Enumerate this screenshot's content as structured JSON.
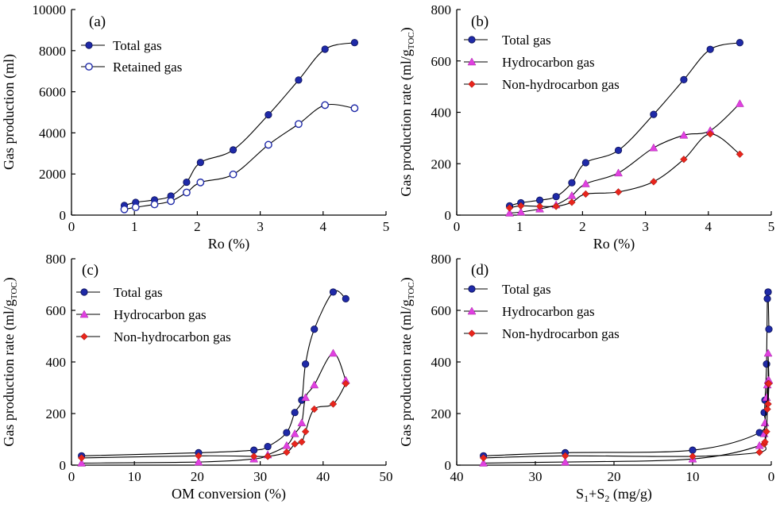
{
  "colors": {
    "total": "#1f2aa8",
    "hydro": "#e040e0",
    "nonhydro": "#e8251c",
    "line": "#000000"
  },
  "chart_data": [
    {
      "type": "line",
      "panel": "(a)",
      "xlabel": "Ro (%)",
      "ylabel": "Gas production (ml)",
      "xlim": [
        0,
        5
      ],
      "ylim": [
        0,
        10000
      ],
      "xticks": [
        "0",
        "1",
        "2",
        "3",
        "4",
        "5"
      ],
      "yticks": [
        "0",
        "2000",
        "4000",
        "6000",
        "8000",
        "10000"
      ],
      "legend_position": "top-left",
      "series": [
        {
          "name": "Total gas",
          "marker": "filled-circle",
          "x": [
            0.84,
            1.02,
            1.32,
            1.58,
            1.83,
            2.05,
            2.57,
            3.13,
            3.61,
            4.03,
            4.5
          ],
          "y": [
            470,
            620,
            740,
            930,
            1600,
            2560,
            3170,
            4880,
            6570,
            8070,
            8390
          ]
        },
        {
          "name": "Retained gas",
          "marker": "open-circle",
          "x": [
            0.84,
            1.02,
            1.32,
            1.58,
            1.83,
            2.05,
            2.57,
            3.13,
            3.61,
            4.03,
            4.5
          ],
          "y": [
            280,
            380,
            520,
            680,
            1100,
            1590,
            1980,
            3420,
            4430,
            5350,
            5200
          ]
        }
      ]
    },
    {
      "type": "line",
      "panel": "(b)",
      "xlabel": "Ro (%)",
      "ylabel_main": "Gas production rate (ml/g",
      "ylabel_sub": "TOC",
      "ylabel_end": ")",
      "xlim": [
        0,
        5
      ],
      "ylim": [
        0,
        800
      ],
      "xticks": [
        "0",
        "1",
        "2",
        "3",
        "4",
        "5"
      ],
      "yticks": [
        "0",
        "200",
        "400",
        "600",
        "800"
      ],
      "legend_position": "top-left",
      "series": [
        {
          "name": "Total gas",
          "marker": "filled-circle",
          "x": [
            0.84,
            1.02,
            1.32,
            1.58,
            1.83,
            2.05,
            2.57,
            3.13,
            3.61,
            4.03,
            4.5
          ],
          "y": [
            36,
            48,
            58,
            72,
            126,
            204,
            252,
            392,
            527,
            645,
            671
          ]
        },
        {
          "name": "Hydrocarbon gas",
          "marker": "triangle",
          "x": [
            0.84,
            1.02,
            1.32,
            1.58,
            1.83,
            2.05,
            2.57,
            3.13,
            3.61,
            4.03,
            4.5
          ],
          "y": [
            8,
            12,
            24,
            40,
            76,
            122,
            164,
            262,
            311,
            329,
            434
          ]
        },
        {
          "name": "Non-hydrocarbon gas",
          "marker": "diamond",
          "x": [
            0.84,
            1.02,
            1.32,
            1.58,
            1.83,
            2.05,
            2.57,
            3.13,
            3.61,
            4.03,
            4.5
          ],
          "y": [
            28,
            36,
            34,
            34,
            50,
            82,
            90,
            130,
            217,
            316,
            237
          ]
        }
      ]
    },
    {
      "type": "line",
      "panel": "(c)",
      "xlabel": "OM conversion (%)",
      "ylabel_main": "Gas production rate (ml/g",
      "ylabel_sub": "TOC",
      "ylabel_end": ")",
      "xlim": [
        0,
        50
      ],
      "ylim": [
        0,
        800
      ],
      "xticks": [
        "0",
        "10",
        "20",
        "30",
        "40",
        "50"
      ],
      "yticks": [
        "0",
        "200",
        "400",
        "600",
        "800"
      ],
      "legend_position": "top-left",
      "series": [
        {
          "name": "Total gas",
          "marker": "filled-circle",
          "x": [
            1.6,
            20.2,
            29.0,
            31.2,
            34.2,
            35.5,
            36.6,
            37.2,
            38.6,
            41.6,
            43.6
          ],
          "y": [
            36,
            48,
            58,
            72,
            126,
            204,
            252,
            392,
            527,
            671,
            645
          ]
        },
        {
          "name": "Hydrocarbon gas",
          "marker": "triangle",
          "x": [
            1.6,
            20.2,
            29.0,
            31.2,
            34.2,
            35.5,
            36.6,
            37.2,
            38.6,
            41.6,
            43.6
          ],
          "y": [
            8,
            12,
            24,
            40,
            76,
            122,
            164,
            262,
            311,
            434,
            329
          ]
        },
        {
          "name": "Non-hydrocarbon gas",
          "marker": "diamond",
          "x": [
            1.6,
            20.2,
            29.0,
            31.2,
            34.2,
            35.5,
            36.6,
            37.2,
            38.6,
            41.6,
            43.6
          ],
          "y": [
            28,
            36,
            34,
            34,
            50,
            82,
            90,
            130,
            217,
            237,
            316
          ]
        }
      ]
    },
    {
      "type": "line",
      "panel": "(d)",
      "xlabel_pre": "S",
      "xlabel_sub1": "1",
      "xlabel_mid": "+S",
      "xlabel_sub2": "2",
      "xlabel_post": " (mg/g)",
      "ylabel_main": "Gas production rate (ml/g",
      "ylabel_sub": "TOC",
      "ylabel_end": ")",
      "xlim": [
        40,
        0
      ],
      "ylim": [
        0,
        800
      ],
      "xticks": [
        "40",
        "30",
        "20",
        "10",
        "0"
      ],
      "yticks": [
        "0",
        "200",
        "400",
        "600",
        "800"
      ],
      "legend_position": "top-left",
      "series": [
        {
          "name": "Total gas",
          "marker": "filled-circle",
          "x": [
            36.6,
            26.2,
            10.0,
            1.5,
            0.9,
            0.8,
            0.6,
            0.5,
            0.4,
            0.4,
            0.3
          ],
          "y": [
            36,
            48,
            58,
            126,
            204,
            252,
            392,
            645,
            671,
            671,
            527
          ]
        },
        {
          "name": "Hydrocarbon gas",
          "marker": "triangle",
          "x": [
            36.6,
            26.2,
            10.0,
            1.5,
            0.9,
            0.8,
            0.6,
            0.5,
            0.4,
            0.4,
            0.3
          ],
          "y": [
            8,
            12,
            24,
            76,
            122,
            164,
            262,
            311,
            329,
            434,
            329
          ]
        },
        {
          "name": "Non-hydrocarbon gas",
          "marker": "diamond",
          "x": [
            36.6,
            26.2,
            10.0,
            1.5,
            0.9,
            0.8,
            0.6,
            0.5,
            0.4,
            0.4,
            0.3
          ],
          "y": [
            28,
            36,
            34,
            50,
            82,
            90,
            130,
            217,
            316,
            237,
            316
          ]
        }
      ]
    }
  ]
}
